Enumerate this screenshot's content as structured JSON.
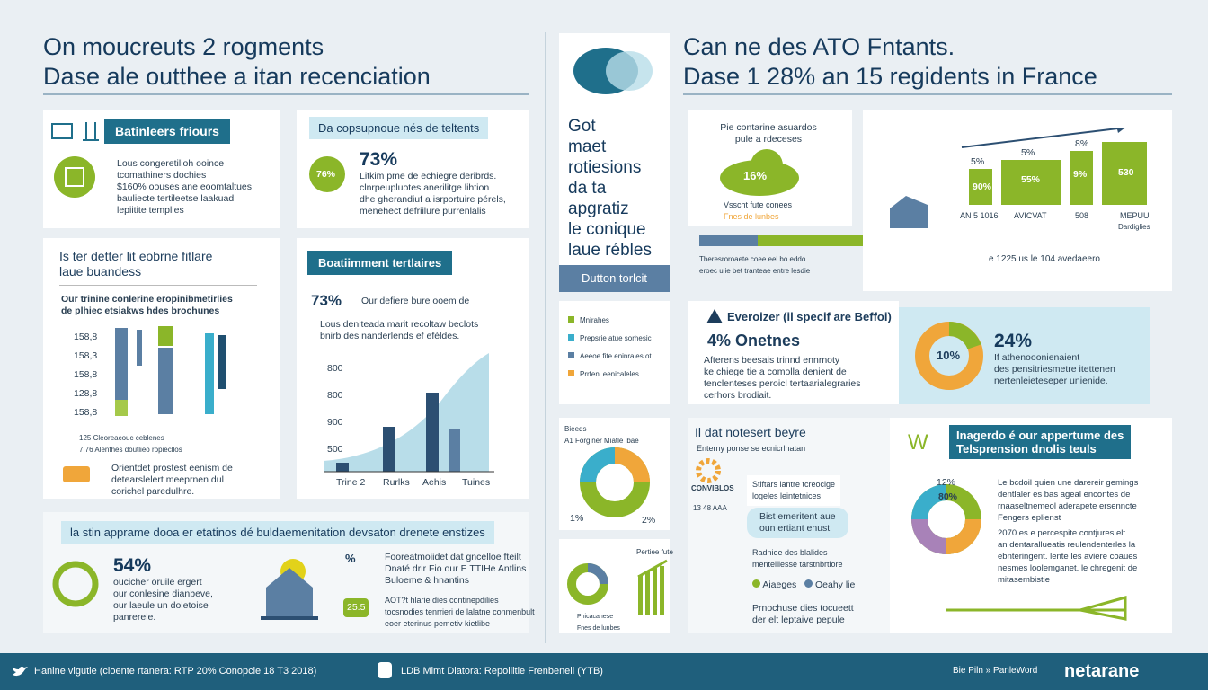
{
  "header_left": {
    "lines": [
      "On moucreuts 2 rogments",
      "Dase ale outthee a itan recenciation"
    ]
  },
  "header_right": {
    "lines": [
      "Can ne des ATO Fntants.",
      "Dase 1 28% an 15 regidents in France"
    ]
  },
  "panel_a": {
    "label": "Batinleers friours",
    "lines": [
      "Lous congeretilioh ooince",
      "tcomathiners dochies",
      "$160% oouses ane eoomtaltues",
      "bauliecte tertileetse laakuad",
      "lepiitite templies"
    ]
  },
  "panel_b": {
    "label": "Da copsupnoue nés de teltents",
    "badge": "76%",
    "stat": "73%",
    "lines": [
      "Litkim pme de echiegre deribrds.",
      "clnrpeupluotes anerilitge lihtion",
      "dhe gherandiuf a isrportuire pérels,",
      "menehect defriilure purrenlalis"
    ]
  },
  "panel_c": {
    "title": [
      "Is ter detter lit eobrne fitlare",
      "laue buandess"
    ],
    "subtitle": [
      "Our trinine conlerine eropinibmetirlies",
      "de plhiec etsiakws hdes brochunes"
    ],
    "axis": [
      "158,8",
      "158,3",
      "158,8",
      "128,8",
      "158,8"
    ],
    "notes": [
      "125 Cleoreacouc ceblenes",
      "7,76 Alenthes doutlieo ropiecllos"
    ],
    "foot": [
      "Orientdet prostest eenism de",
      "detearslelert meeprnen dul",
      "corichel paredulhre."
    ]
  },
  "panel_d": {
    "label": "Boatiimment tertlaires",
    "stat": "73%",
    "stat_text": "Our defiere bure ooem de",
    "lines": [
      "Lous deniteada marit recoltaw beclots",
      "bnirb des nanderlends ef eféldes."
    ],
    "ticks": [
      "800",
      "800",
      "900",
      "500"
    ],
    "categories": [
      "Trine 2",
      "Rurlks",
      "Aehis",
      "Tuines"
    ]
  },
  "panel_e": {
    "label": "la stin apprame dooa er etatinos dé buldaemenitation devsaton drenete enstizes",
    "stat": "54%",
    "lines": [
      "oucicher oruile ergert",
      "our conlesine dianbeve,",
      "our laeule un doletoise",
      "panrerele."
    ],
    "pct": "%",
    "right_lines": [
      "Fooreatmoiidet dat gncelloe fteilt",
      "Dnaté drir Fio our E TTIHe Antlins",
      "Buloeme & hnantins"
    ],
    "badge": "25.5",
    "right_lines2": [
      "AOT?t hlarie dies continepdilies",
      "tocsnodies tenrrieri de lalatne conmenbult",
      "eoer eterinus pemetiv kietlibe"
    ]
  },
  "card_tall": {
    "lines": [
      "Got",
      "maet",
      "rotiesions",
      "da ta",
      "apgratiz",
      "le conique",
      "laue rébles"
    ],
    "button": "Dutton torlcit"
  },
  "card_cloud": {
    "title": [
      "Pie contarine asuardos",
      "pule a rdeceses"
    ],
    "cloud": "16%",
    "lines": [
      "Vsscht fute conees",
      "Fnes de lunbes"
    ]
  },
  "card_bars": {
    "labels": [
      "5%",
      "5%",
      "8%"
    ],
    "bars": [
      "90%",
      "55%",
      "9%",
      "530"
    ],
    "categories": [
      "AN 5 1016",
      "AVICVAT",
      "508",
      "MEPUU"
    ],
    "sub": "Dardiglies",
    "left_lines": [
      "Theresroroaete coee eel bo eddo",
      "eroec ulie bet tranteae entre lesdie"
    ],
    "right": "e 1225 us le 104 avedaeero"
  },
  "card_legend": {
    "items": [
      "Mnirahes",
      "Prepsrie atue sorhesic",
      "Aeeoe fite eninrales ot",
      "Prrfenl eenicaleles"
    ]
  },
  "card_warn": {
    "title": "Everoizer (il specif are Beffoi)",
    "stat": "4% Onetnes",
    "lines": [
      "Afterens beesais trinnd ennrnoty",
      "ke chiege tie a comolla denient de",
      "tenclenteses peroicl tertaarialegraries",
      "cerhors brodiait."
    ]
  },
  "card_donut": {
    "center": "10%",
    "stat": "24%",
    "lines": [
      "If athenooonienaient",
      "des pensitriesmetre itettenen",
      "nertenleieteseper unienide."
    ]
  },
  "card_pie": {
    "title": [
      "Bieeds",
      "A1 Forginer Miatle ibae"
    ],
    "left": "1%",
    "right": "2%"
  },
  "card_mid": {
    "title": "Il dat notesert beyre",
    "sub": "Enterny ponse se ecnicrlnatan",
    "tag": "CONVIBLOS",
    "tag2": "13 48 AAA",
    "box": [
      "Stiftars lantre tcreocige",
      "logeles leintetnices"
    ],
    "pill": [
      "Bist emeritent aue",
      "oun ertiant enust"
    ],
    "lines": [
      "Radniee des blalides",
      "mentelliesse tarstnbrtiore"
    ],
    "legend": [
      "Aiaeges",
      "Oeahy lie"
    ],
    "foot": [
      "Prnochuse dies tocueett",
      "der elt leptaive pepule"
    ]
  },
  "card_small": {
    "title": "Pertiee fute",
    "lines": [
      "Pnicacanese",
      "Fnes de lunbes"
    ]
  },
  "card_insight": {
    "title": [
      "Inagerdo é our appertume des",
      "Telsprension dnolis teuls"
    ],
    "pct1": "12%",
    "pct2": "80%",
    "lines": [
      "Le bcdoil quien une darereir gemings",
      "dentlaler es bas ageal encontes de",
      "rnaaseltnemeol aderapete ersenncte",
      "Fengers eplienst"
    ],
    "lines2": [
      "2070 es e percespite contjures elt",
      "an dentarallueatis reulendenterles la",
      "ebnteringent. lente les aviere coaues",
      "nesmes loolemganet. le chregenit de",
      "mitasembistie"
    ]
  },
  "footer": {
    "left": "Hanine vigutle (cioente rtanera: RTP 20% Conopcie 18 T3 2018)",
    "mid": "LDB Mimt Dlatora: Repoilitie Frenbenell (YTB)",
    "right": "Bie Piln » PanleWord",
    "brand": "netarane"
  }
}
